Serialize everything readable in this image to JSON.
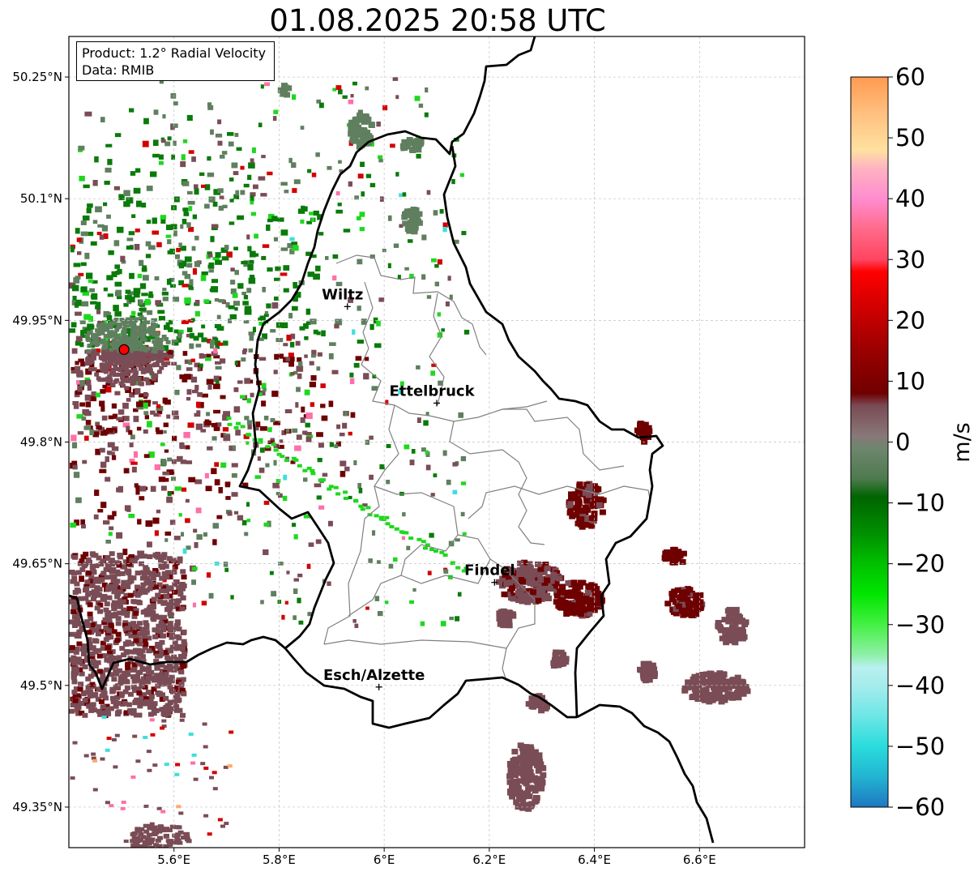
{
  "title": "01.08.2025 20:58 UTC",
  "info": {
    "product": "Product: 1.2° Radial Velocity",
    "data": "Data: RMIB"
  },
  "map": {
    "lon_range": [
      5.4,
      6.8
    ],
    "lat_range": [
      49.3,
      50.3
    ],
    "lon_ticks": [
      {
        "value": 5.6,
        "label": "5.6°E"
      },
      {
        "value": 5.8,
        "label": "5.8°E"
      },
      {
        "value": 6.0,
        "label": "6°E"
      },
      {
        "value": 6.2,
        "label": "6.2°E"
      },
      {
        "value": 6.4,
        "label": "6.4°E"
      },
      {
        "value": 6.6,
        "label": "6.6°E"
      }
    ],
    "lat_ticks": [
      {
        "value": 50.25,
        "label": "50.25°N"
      },
      {
        "value": 50.1,
        "label": "50.1°N"
      },
      {
        "value": 49.95,
        "label": "49.95°N"
      },
      {
        "value": 49.8,
        "label": "49.8°N"
      },
      {
        "value": 49.65,
        "label": "49.65°N"
      },
      {
        "value": 49.5,
        "label": "49.5°N"
      },
      {
        "value": 49.35,
        "label": "49.35°N"
      }
    ],
    "cities": [
      {
        "name": "Wiltz",
        "lon": 5.93,
        "lat": 49.967
      },
      {
        "name": "Ettelbruck",
        "lon": 6.1,
        "lat": 49.848
      },
      {
        "name": "Findel",
        "lon": 6.21,
        "lat": 49.627
      },
      {
        "name": "Esch/Alzette",
        "lon": 5.99,
        "lat": 49.498
      }
    ],
    "radar_site": {
      "lon": 5.505,
      "lat": 49.914
    },
    "border_color": "#000000",
    "canton_color": "#808080"
  },
  "colorbar": {
    "label": "m/s",
    "vmin": -60,
    "vmax": 60,
    "ticks": [
      {
        "value": 60,
        "label": "60"
      },
      {
        "value": 50,
        "label": "50"
      },
      {
        "value": 40,
        "label": "40"
      },
      {
        "value": 30,
        "label": "30"
      },
      {
        "value": 20,
        "label": "20"
      },
      {
        "value": 10,
        "label": "10"
      },
      {
        "value": 0,
        "label": "0"
      },
      {
        "value": -10,
        "label": "−10"
      },
      {
        "value": -20,
        "label": "−20"
      },
      {
        "value": -30,
        "label": "−30"
      },
      {
        "value": -40,
        "label": "−40"
      },
      {
        "value": -50,
        "label": "−50"
      },
      {
        "value": -60,
        "label": "−60"
      }
    ],
    "stops": [
      {
        "value": -60,
        "color": "#1f78c1"
      },
      {
        "value": -55,
        "color": "#22b4d2"
      },
      {
        "value": -50,
        "color": "#2adcdc"
      },
      {
        "value": -45,
        "color": "#6ee6e6"
      },
      {
        "value": -40,
        "color": "#a6ecec"
      },
      {
        "value": -37,
        "color": "#b8f0ee"
      },
      {
        "value": -35,
        "color": "#8ff0a8"
      },
      {
        "value": -30,
        "color": "#44f044"
      },
      {
        "value": -25,
        "color": "#00e600"
      },
      {
        "value": -20,
        "color": "#00c000"
      },
      {
        "value": -15,
        "color": "#009000"
      },
      {
        "value": -9,
        "color": "#006400"
      },
      {
        "value": -6,
        "color": "#4e7a4e"
      },
      {
        "value": -1,
        "color": "#6e866e"
      },
      {
        "value": 1,
        "color": "#887878"
      },
      {
        "value": 6,
        "color": "#7a4a55"
      },
      {
        "value": 8,
        "color": "#700000"
      },
      {
        "value": 15,
        "color": "#9a0000"
      },
      {
        "value": 22,
        "color": "#d00000"
      },
      {
        "value": 28,
        "color": "#ff0000"
      },
      {
        "value": 30,
        "color": "#ff4560"
      },
      {
        "value": 35,
        "color": "#ff6a8a"
      },
      {
        "value": 40,
        "color": "#ff8ccf"
      },
      {
        "value": 45,
        "color": "#ffb3c1"
      },
      {
        "value": 48,
        "color": "#ffe1a0"
      },
      {
        "value": 54,
        "color": "#ffc080"
      },
      {
        "value": 60,
        "color": "#ff9a50"
      }
    ]
  },
  "palette": {
    "dark_green": "#0a7a0a",
    "gray_green": "#5f7f5f",
    "bright_green": "#1ed81e",
    "gray_maroon": "#7a4c56",
    "dark_red": "#6e0000",
    "red": "#d40000",
    "pink": "#ff6fa8",
    "cyan": "#3fdede",
    "orange": "#ffaa66"
  }
}
